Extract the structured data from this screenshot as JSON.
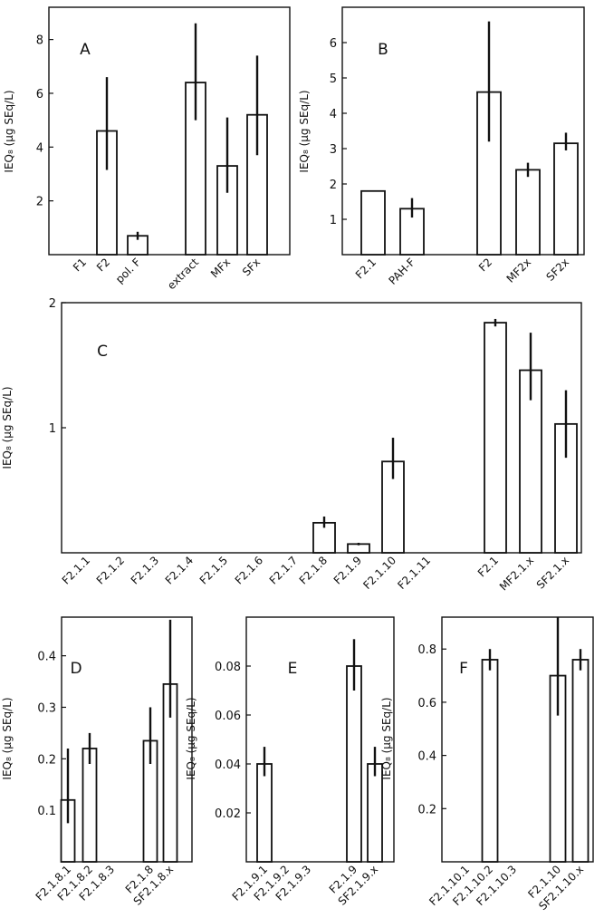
{
  "chart_data": [
    {
      "panel": "A",
      "type": "bar",
      "ylabel": "IEQ₈ (μg SEq/L)",
      "ylim": [
        0,
        9.2
      ],
      "yticks": [
        2,
        4,
        6,
        8
      ],
      "categories": [
        "F1",
        "F2",
        "pol. F",
        "extract",
        "MFx",
        "SFx"
      ],
      "values": [
        null,
        4.6,
        0.7,
        6.4,
        3.3,
        5.2
      ],
      "err_low": [
        null,
        3.15,
        0.55,
        5.0,
        2.3,
        3.7
      ],
      "err_high": [
        null,
        6.6,
        0.85,
        8.6,
        5.1,
        7.4
      ]
    },
    {
      "panel": "B",
      "type": "bar",
      "ylabel": "IEQ₈ (μg SEq/L)",
      "ylim": [
        0,
        7.0
      ],
      "yticks": [
        1,
        2,
        3,
        4,
        5,
        6
      ],
      "categories": [
        "F2.1",
        "PAH-F",
        "F2",
        "MF2x",
        "SF2x"
      ],
      "values": [
        1.8,
        1.3,
        4.6,
        2.4,
        3.15
      ],
      "err_low": [
        null,
        1.05,
        3.2,
        2.2,
        2.95
      ],
      "err_high": [
        null,
        1.6,
        6.6,
        2.6,
        3.45
      ]
    },
    {
      "panel": "C",
      "type": "bar",
      "ylabel": "IEQ₈ (μg SEq/L)",
      "ylim": [
        0,
        2
      ],
      "yticks": [
        1,
        2
      ],
      "categories": [
        "F2.1.1",
        "F2.1.2",
        "F2.1.3",
        "F2.1.4",
        "F2.1.5",
        "F2.1.6",
        "F2.1.7",
        "F2.1.8",
        "F2.1.9",
        "F2.1.10",
        "F2.1.11",
        "F2.1",
        "MF2.1.x",
        "SF2.1.x"
      ],
      "values": [
        null,
        null,
        null,
        null,
        null,
        null,
        null,
        0.24,
        0.07,
        0.73,
        null,
        1.84,
        1.46,
        1.03
      ],
      "err_low": [
        null,
        null,
        null,
        null,
        null,
        null,
        null,
        0.2,
        0.06,
        0.59,
        null,
        1.81,
        1.22,
        0.76
      ],
      "err_high": [
        null,
        null,
        null,
        null,
        null,
        null,
        null,
        0.29,
        0.08,
        0.92,
        null,
        1.87,
        1.76,
        1.3
      ]
    },
    {
      "panel": "D",
      "type": "bar",
      "ylabel": "IEQ₈ (μg SEq/L)",
      "ylim": [
        0,
        0.475
      ],
      "yticks": [
        0.1,
        0.2,
        0.3,
        0.4
      ],
      "categories": [
        "F2.1.8.1",
        "F2.1.8.2",
        "F2.1.8.3",
        "F2.1.8",
        "SF2.1.8.x"
      ],
      "values": [
        0.12,
        0.22,
        null,
        0.235,
        0.345
      ],
      "err_low": [
        0.075,
        0.19,
        null,
        0.19,
        0.28
      ],
      "err_high": [
        0.22,
        0.25,
        null,
        0.3,
        0.47
      ]
    },
    {
      "panel": "E",
      "type": "bar",
      "ylabel": "IEQ₈ (μg SEq/L)",
      "ylim": [
        0,
        0.1
      ],
      "yticks": [
        0.02,
        0.04,
        0.06,
        0.08
      ],
      "categories": [
        "F2.1.9.1",
        "F2.1.9.2",
        "F2.1.9.3",
        "F2.1.9",
        "SF2.1.9.x"
      ],
      "values": [
        0.04,
        null,
        null,
        0.08,
        0.04
      ],
      "err_low": [
        0.035,
        null,
        null,
        0.07,
        0.035
      ],
      "err_high": [
        0.047,
        null,
        null,
        0.091,
        0.047
      ]
    },
    {
      "panel": "F",
      "type": "bar",
      "ylabel": "IEQ₈ (μg SEq/L)",
      "ylim": [
        0,
        0.92
      ],
      "yticks": [
        0.2,
        0.4,
        0.6,
        0.8
      ],
      "categories": [
        "F2.1.10.1",
        "F2.1.10.2",
        "F2.1.10.3",
        "F2.1.10",
        "SF2.1.10.x"
      ],
      "values": [
        null,
        0.76,
        null,
        0.7,
        0.76
      ],
      "err_low": [
        null,
        0.72,
        null,
        0.55,
        0.72
      ],
      "err_high": [
        null,
        0.8,
        null,
        0.92,
        0.8
      ]
    }
  ]
}
